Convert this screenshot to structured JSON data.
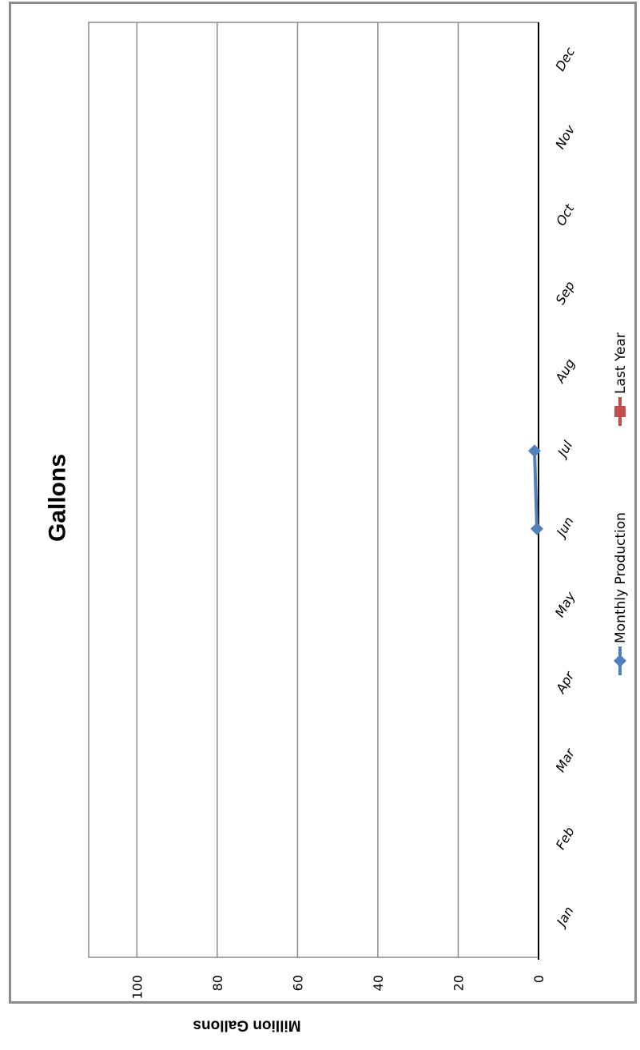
{
  "chart_data": {
    "type": "line",
    "title": "Gallons",
    "xlabel": "",
    "ylabel": "Million Gallons",
    "categories": [
      "Jan",
      "Feb",
      "Mar",
      "Apr",
      "May",
      "Jun",
      "Jul",
      "Aug",
      "Sep",
      "Oct",
      "Nov",
      "Dec"
    ],
    "y_ticks": [
      0,
      20,
      40,
      60,
      80,
      100
    ],
    "ylim": [
      0,
      112
    ],
    "grid": true,
    "legend_position": "bottom",
    "orientation": "rotated 90 degrees clockwise",
    "series": [
      {
        "name": "Monthly Production",
        "color": "#4f81bd",
        "marker": "diamond",
        "values": [
          null,
          null,
          null,
          null,
          null,
          0.4,
          1.0,
          null,
          null,
          null,
          null,
          null
        ]
      },
      {
        "name": "Last Year",
        "color": "#c0504d",
        "marker": "square",
        "values": [
          null,
          null,
          null,
          null,
          null,
          null,
          null,
          null,
          null,
          null,
          null,
          null
        ]
      }
    ]
  }
}
